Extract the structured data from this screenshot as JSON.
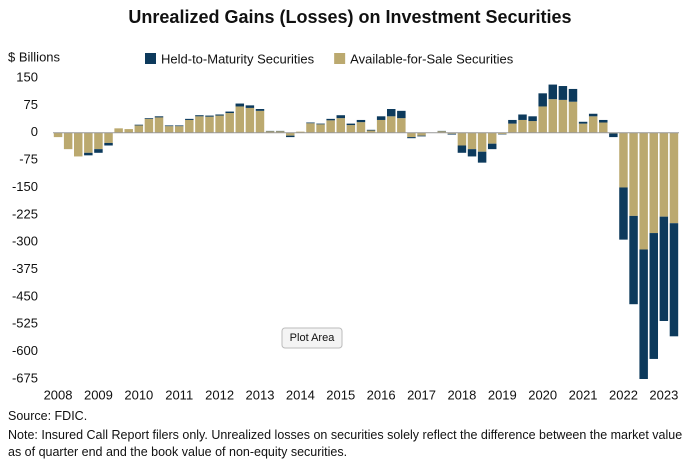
{
  "chart_data": {
    "type": "stacked_bar",
    "title": "Unrealized Gains (Losses) on Investment Securities",
    "y_label": "$ Billions",
    "source": "Source: FDIC.",
    "note": "Note: Insured Call Report filers only. Unrealized losses on securities solely reflect the difference between the market value as of quarter end and the book value of non-equity securities.",
    "tooltip": "Plot Area",
    "categories": [
      "2008",
      null,
      null,
      null,
      "2009",
      null,
      null,
      null,
      "2010",
      null,
      null,
      null,
      "2011",
      null,
      null,
      null,
      "2012",
      null,
      null,
      null,
      "2013",
      null,
      null,
      null,
      "2014",
      null,
      null,
      null,
      "2015",
      null,
      null,
      null,
      "2016",
      null,
      null,
      null,
      "2017",
      null,
      null,
      null,
      "2018",
      null,
      null,
      null,
      "2019",
      null,
      null,
      null,
      "2020",
      null,
      null,
      null,
      "2021",
      null,
      null,
      null,
      "2022",
      null,
      null,
      null,
      "2023",
      null
    ],
    "series": [
      {
        "name": "Available-for-Sale Securities",
        "color": "#bba96f",
        "values": [
          -12,
          -45,
          -65,
          -55,
          -45,
          -28,
          12,
          10,
          20,
          38,
          42,
          18,
          18,
          35,
          45,
          44,
          47,
          54,
          72,
          68,
          60,
          4,
          4,
          -8,
          3,
          26,
          23,
          34,
          40,
          21,
          29,
          6,
          35,
          45,
          40,
          -12,
          -8,
          0,
          4,
          -3,
          -35,
          -45,
          -52,
          -30,
          -4,
          25,
          35,
          32,
          72,
          92,
          90,
          85,
          25,
          45,
          28,
          -2,
          -150,
          -228,
          -320,
          -275,
          -230,
          -248
        ]
      },
      {
        "name": "Held-to-Maturity Securities",
        "color": "#0d3a5c",
        "values": [
          0,
          0,
          0,
          -7,
          -10,
          -7,
          0,
          0,
          2,
          2,
          3,
          2,
          2,
          3,
          3,
          3,
          3,
          4,
          8,
          7,
          5,
          1,
          1,
          -4,
          0,
          2,
          2,
          4,
          8,
          4,
          6,
          2,
          10,
          20,
          20,
          -3,
          -2,
          0,
          1,
          -2,
          -20,
          -20,
          -30,
          -15,
          -1,
          10,
          15,
          13,
          36,
          40,
          38,
          35,
          5,
          7,
          7,
          -10,
          -143,
          -242,
          -370,
          -345,
          -286,
          -310
        ]
      }
    ],
    "legend_order": [
      1,
      0
    ],
    "ylim": [
      -675,
      150
    ],
    "yticks": [
      150,
      75,
      0,
      -75,
      -150,
      -225,
      -300,
      -375,
      -450,
      -525,
      -600,
      -675
    ],
    "grid": false
  }
}
